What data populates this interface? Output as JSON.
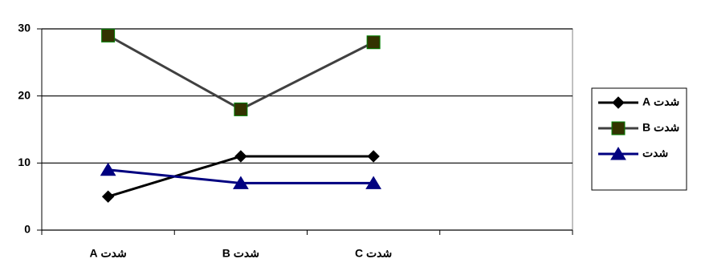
{
  "chart_data": {
    "type": "line",
    "categories": [
      "شدت A",
      "شدت B",
      "شدت C",
      null
    ],
    "series": [
      {
        "name": "شدت A",
        "color": "#000000",
        "marker": "diamond",
        "marker_color": "#000000",
        "values": [
          5,
          11,
          11,
          null
        ]
      },
      {
        "name": "شدت B",
        "color": "#404040",
        "marker": "square",
        "marker_color": "#333300",
        "values": [
          29,
          18,
          28,
          null
        ]
      },
      {
        "name": "شدت",
        "color": "#000080",
        "marker": "triangle",
        "marker_color": "#000080",
        "values": [
          9,
          7,
          7,
          null
        ]
      }
    ],
    "ylim": [
      0,
      30
    ],
    "yticks": [
      0,
      10,
      20,
      30
    ],
    "grid": true,
    "legend": "right"
  }
}
